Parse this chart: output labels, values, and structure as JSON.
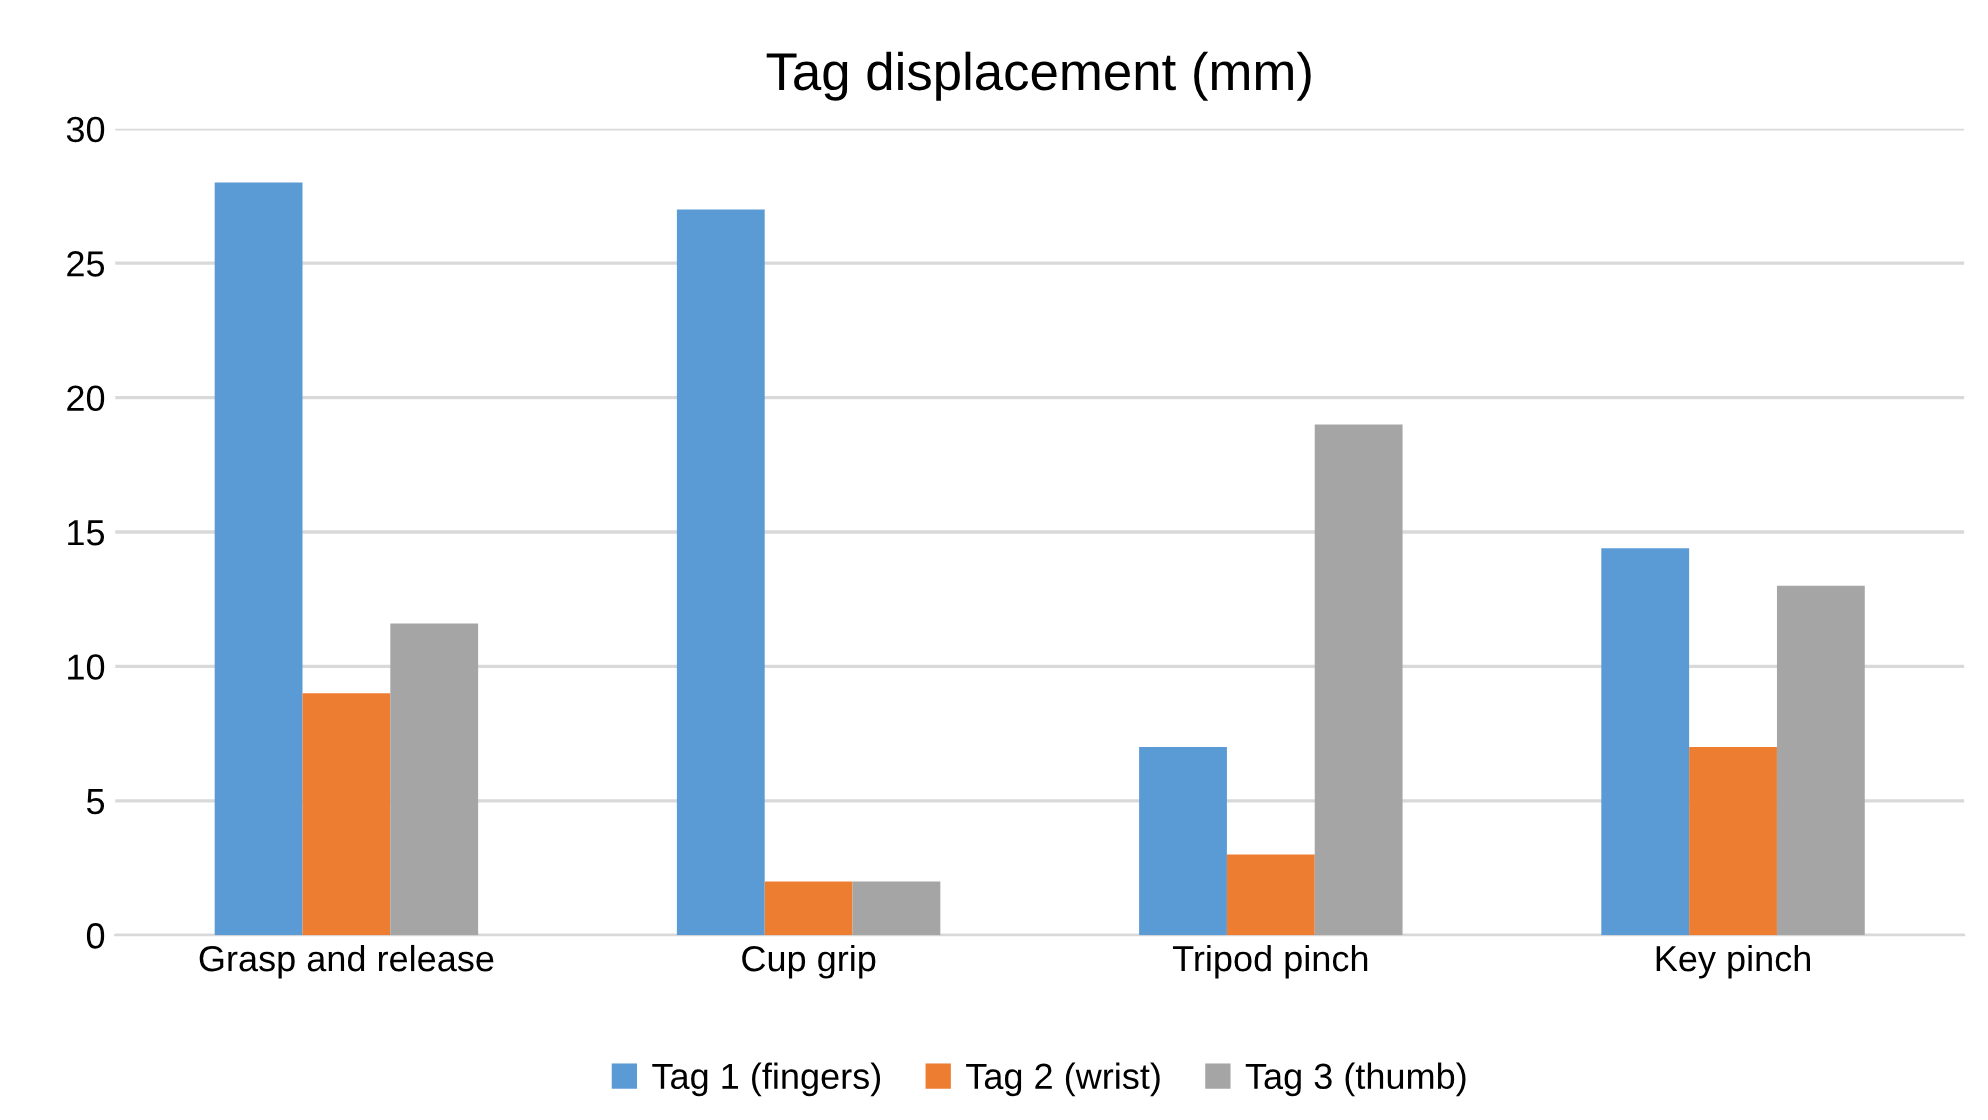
{
  "chart_data": {
    "type": "bar",
    "title": "Tag displacement (mm)",
    "categories": [
      "Grasp and release",
      "Cup grip",
      "Tripod pinch",
      "Key pinch"
    ],
    "series": [
      {
        "name": "Tag 1 (fingers)",
        "color": "#5b9bd5",
        "values": [
          28,
          27,
          7,
          14.4
        ]
      },
      {
        "name": "Tag 2 (wrist)",
        "color": "#ed7d31",
        "values": [
          9,
          2,
          3,
          7
        ]
      },
      {
        "name": "Tag 3 (thumb)",
        "color": "#a5a5a5",
        "values": [
          11.6,
          2,
          19,
          13
        ]
      }
    ],
    "ylim": [
      0,
      30
    ],
    "yticks": [
      0,
      5,
      10,
      15,
      20,
      25,
      30
    ],
    "grid": "y",
    "legend": "bottom"
  }
}
